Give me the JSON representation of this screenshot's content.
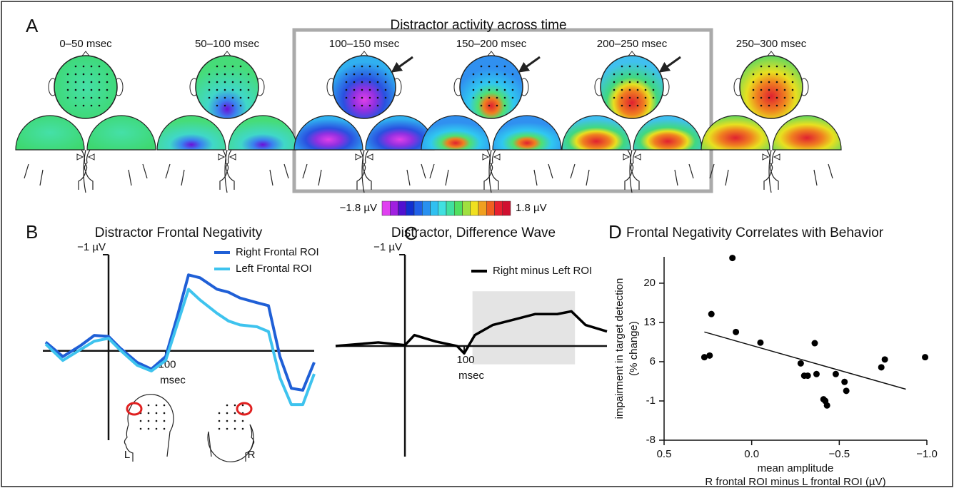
{
  "panel_a": {
    "label": "A",
    "title": "Distractor activity across time",
    "time_windows": [
      "0–50 msec",
      "50–100 msec",
      "100–150 msec",
      "150–200 msec",
      "200–250 msec",
      "250–300 msec"
    ],
    "colorbar_labels": [
      "−1.8 µV",
      "1.8 µV"
    ]
  },
  "chart_data": [
    {
      "type": "line",
      "panel_label": "B",
      "title": "Distractor Frontal Negativity",
      "x_label": "msec",
      "x": [
        -110,
        -80,
        -50,
        -25,
        0,
        20,
        50,
        75,
        100,
        120,
        140,
        160,
        190,
        210,
        230,
        260,
        280,
        300,
        320,
        340,
        360
      ],
      "xlim": [
        -115,
        360
      ],
      "xticks": [
        100
      ],
      "ylim": [
        0.93,
        -1
      ],
      "yticks": [
        {
          "value": -1,
          "label": "−1 µV"
        }
      ],
      "series": [
        {
          "name": "Right Frontal ROI",
          "color": "#1f5fd6",
          "values": [
            -0.09,
            0.06,
            -0.05,
            -0.16,
            -0.15,
            -0.03,
            0.12,
            0.19,
            0.06,
            -0.35,
            -0.79,
            -0.76,
            -0.64,
            -0.61,
            -0.55,
            -0.5,
            -0.47,
            0.06,
            0.39,
            0.41,
            0.12
          ]
        },
        {
          "name": "Left Frontal ROI",
          "color": "#3ec3ee",
          "values": [
            -0.07,
            0.1,
            -0.01,
            -0.1,
            -0.13,
            -0.01,
            0.15,
            0.21,
            0.1,
            -0.27,
            -0.64,
            -0.53,
            -0.39,
            -0.31,
            -0.27,
            -0.25,
            -0.2,
            0.28,
            0.56,
            0.56,
            0.24
          ]
        }
      ],
      "head_labels": [
        "L",
        "R"
      ]
    },
    {
      "type": "line",
      "panel_label": "C",
      "title": "Distractor, Difference Wave",
      "x_label": "msec",
      "x": [
        -117,
        -81,
        -45,
        0,
        16,
        52,
        88,
        100,
        118,
        148,
        184,
        220,
        257,
        281,
        305,
        341
      ],
      "xlim": [
        -117,
        341
      ],
      "xticks": [
        100
      ],
      "ylim": [
        1.21,
        -1
      ],
      "yticks": [
        {
          "value": -1,
          "label": "−1 µV"
        }
      ],
      "highlight": {
        "x": [
          114,
          287
        ],
        "y": [
          0.2,
          -0.6
        ]
      },
      "series": [
        {
          "name": "Right minus Left ROI",
          "color": "#000000",
          "values": [
            0,
            -0.02,
            -0.04,
            -0.01,
            -0.12,
            -0.05,
            0,
            0.08,
            -0.12,
            -0.23,
            -0.29,
            -0.35,
            -0.35,
            -0.38,
            -0.23,
            -0.16
          ]
        }
      ]
    },
    {
      "type": "scatter",
      "panel_label": "D",
      "title": "Frontal Negativity Correlates with Behavior",
      "x_label": [
        "mean amplitude",
        "R frontal ROI minus L frontal ROI (µV)"
      ],
      "y_label": [
        "impairment in target detection",
        "(% change)"
      ],
      "x": [
        0.27,
        0.24,
        0.23,
        0.11,
        0.09,
        -0.05,
        -0.28,
        -0.3,
        -0.32,
        -0.36,
        -0.37,
        -0.41,
        -0.42,
        -0.48,
        -0.43,
        -0.53,
        -0.54,
        -0.74,
        -0.76,
        -0.99
      ],
      "values": [
        6.8,
        7.1,
        14.5,
        24.5,
        11.3,
        9.4,
        5.7,
        3.5,
        3.5,
        9.3,
        3.8,
        -0.7,
        -1.0,
        3.8,
        -1.8,
        2.4,
        0.8,
        5.0,
        6.4,
        6.8
      ],
      "color": "#000000",
      "xlim": [
        0.5,
        -1.0
      ],
      "xticks": [
        0.5,
        {
          "value": 0,
          "label": "0.0"
        },
        {
          "value": -0.5,
          "label": "−0.5"
        },
        {
          "value": -1.0,
          "label": "−1.0"
        }
      ],
      "ylim": [
        -8,
        24.7
      ],
      "yticks": [
        -8,
        -1,
        6,
        13,
        20
      ],
      "trend_line": {
        "x": [
          0.27,
          -0.88
        ],
        "y": [
          11.3,
          1.1
        ]
      }
    }
  ]
}
